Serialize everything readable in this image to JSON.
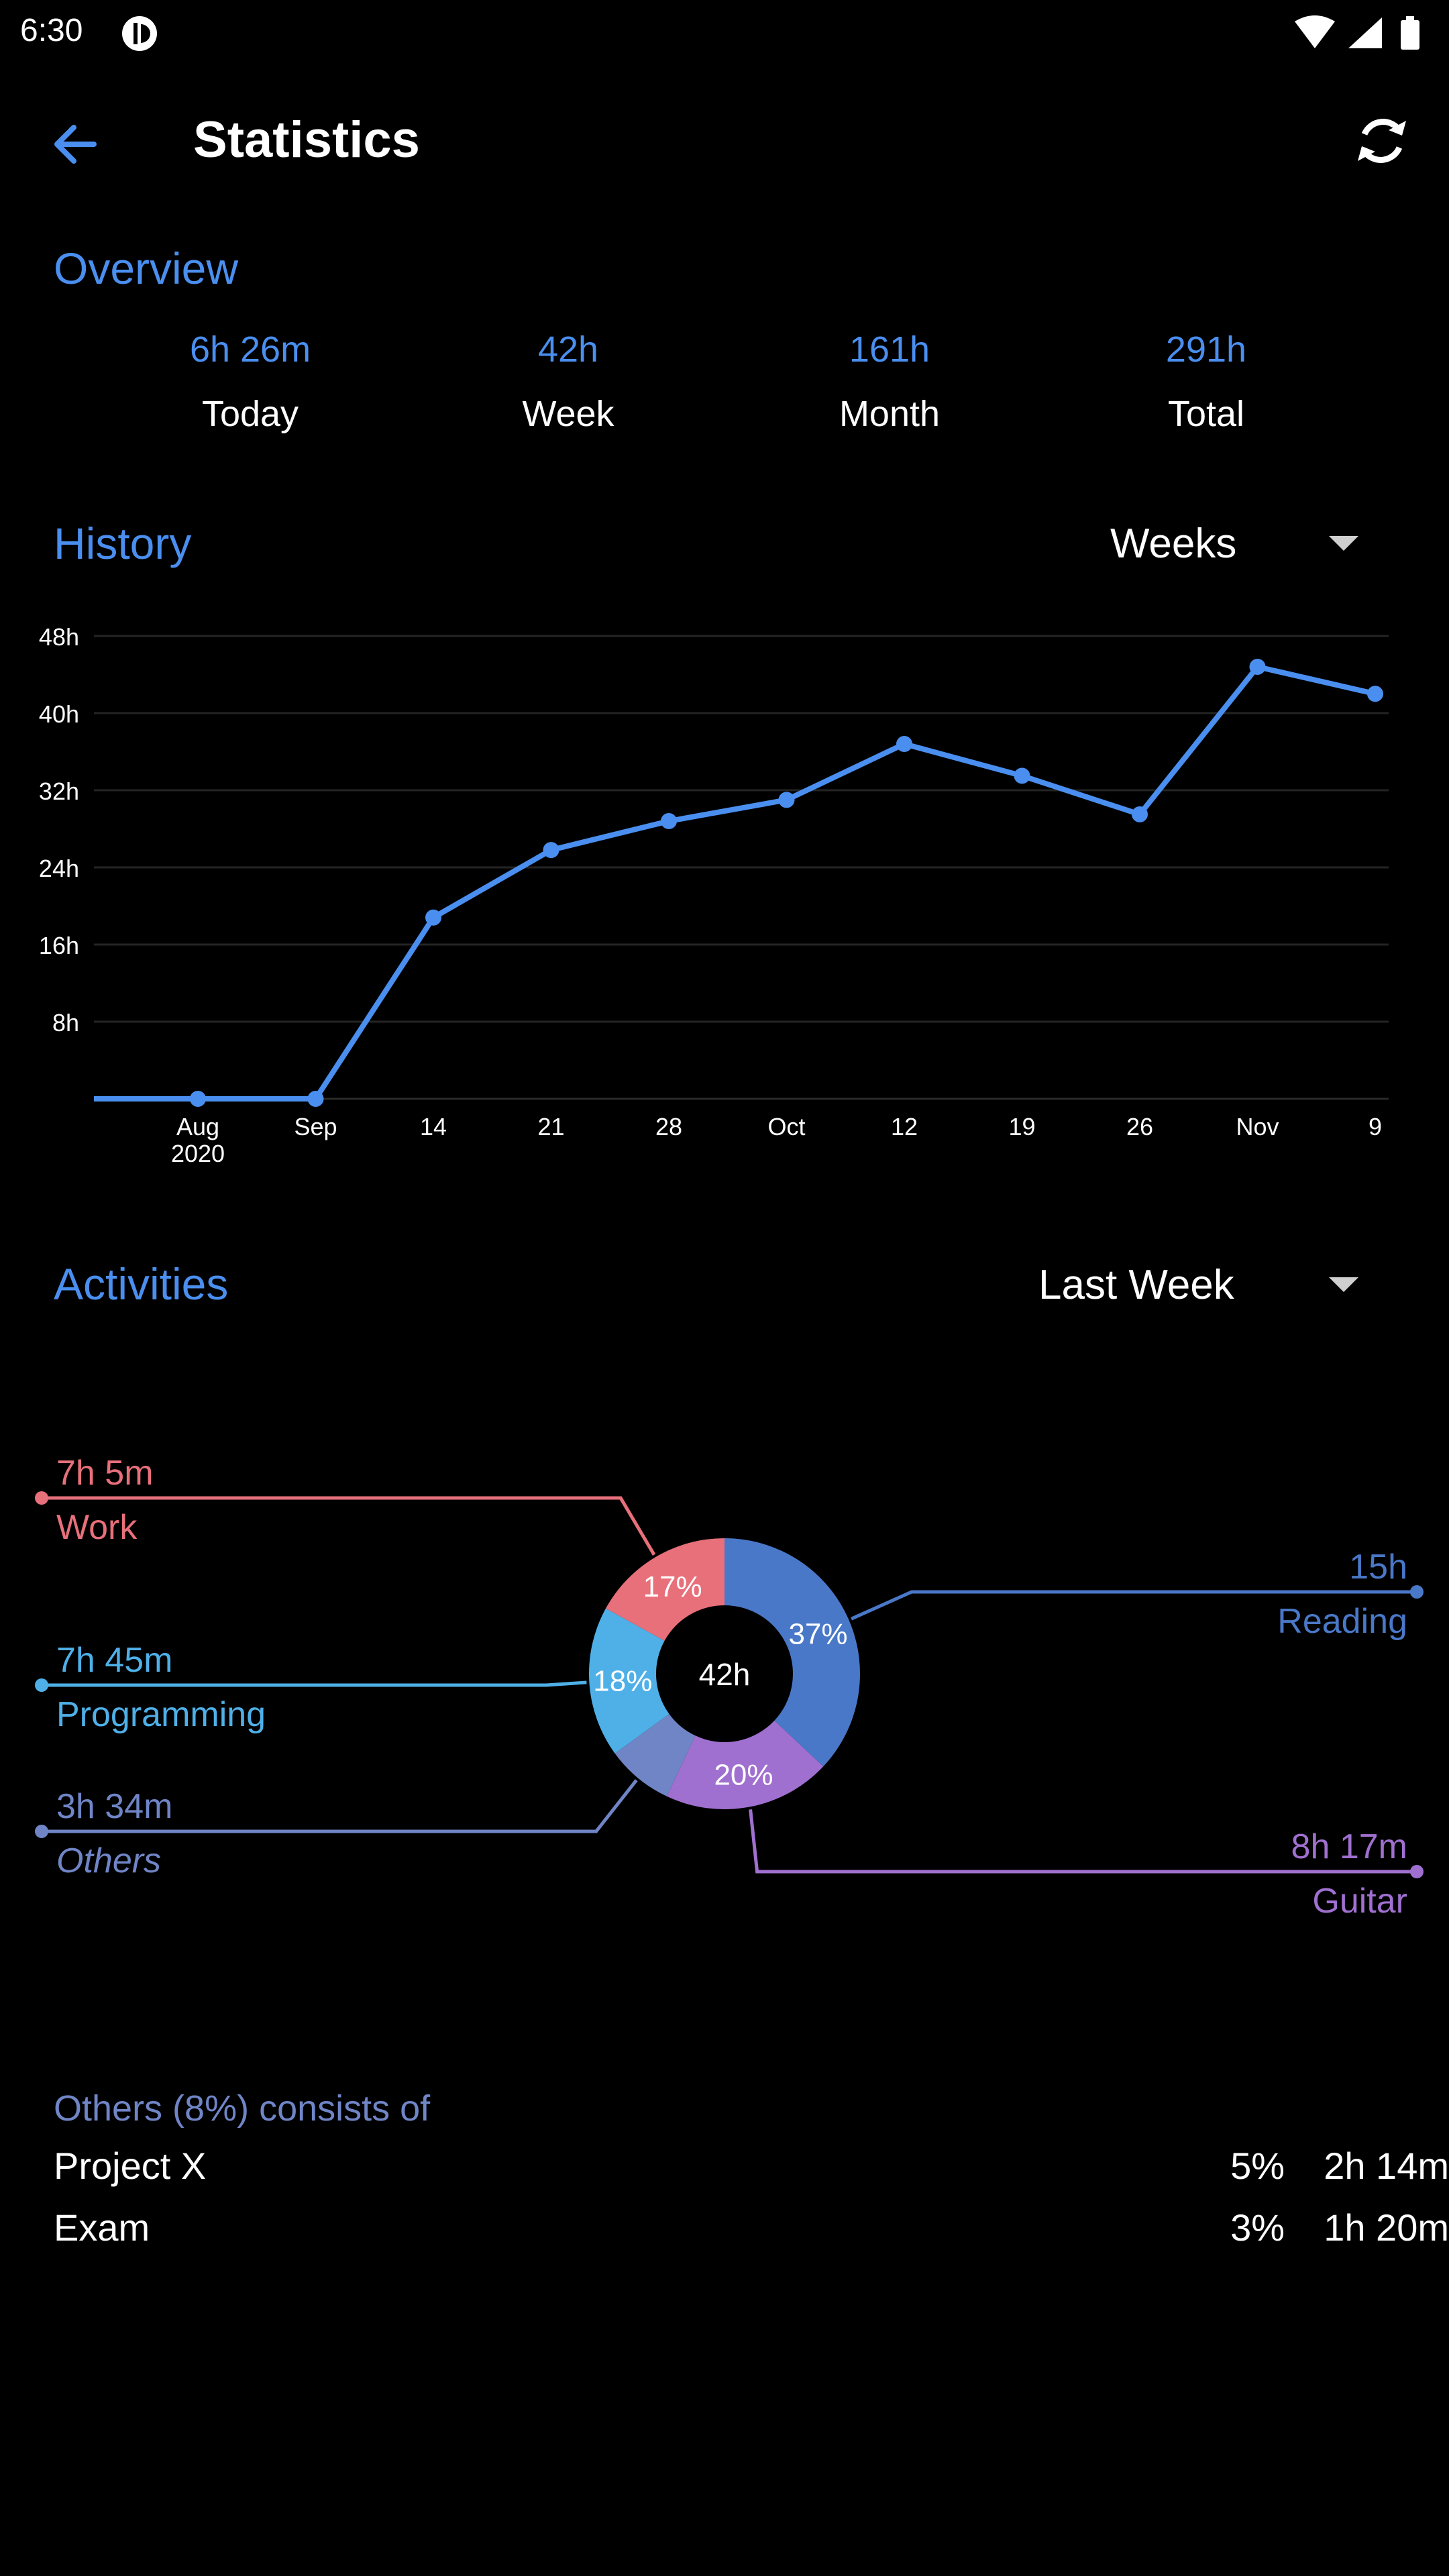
{
  "status_bar": {
    "time": "6:30"
  },
  "app_bar": {
    "title": "Statistics"
  },
  "overview": {
    "heading": "Overview",
    "stats": [
      {
        "value": "6h 26m",
        "label": "Today"
      },
      {
        "value": "42h",
        "label": "Week"
      },
      {
        "value": "161h",
        "label": "Month"
      },
      {
        "value": "291h",
        "label": "Total"
      }
    ]
  },
  "history": {
    "heading": "History",
    "range_selected": "Weeks"
  },
  "activities": {
    "heading": "Activities",
    "range_selected": "Last Week",
    "center_label": "42h"
  },
  "chart_data": [
    {
      "type": "line",
      "categories": [
        "Aug 2020",
        "Sep",
        "14",
        "21",
        "28",
        "Oct",
        "12",
        "19",
        "26",
        "Nov",
        "9"
      ],
      "x_tick_labels": [
        "Aug",
        "Sep",
        "14",
        "21",
        "28",
        "Oct",
        "12",
        "19",
        "26",
        "Nov",
        "9"
      ],
      "x_year_label": "2020",
      "series": [
        {
          "values": [
            0,
            0,
            18.8,
            25.8,
            28.8,
            31,
            36.8,
            33.5,
            29.5,
            44.8,
            42
          ]
        }
      ],
      "ylim": [
        0,
        48
      ],
      "y_ticks": [
        8,
        16,
        24,
        32,
        40,
        48
      ],
      "y_tick_labels": [
        "8h",
        "16h",
        "24h",
        "32h",
        "40h",
        "48h"
      ],
      "grid": true,
      "color": "#4a8ff0"
    },
    {
      "type": "pie",
      "style": "donut",
      "total_label": "42h",
      "slices": [
        {
          "name": "Reading",
          "duration": "15h",
          "percent": 37,
          "percent_label": "37%",
          "color": "#4a78c8",
          "side": "right"
        },
        {
          "name": "Guitar",
          "duration": "8h 17m",
          "percent": 20,
          "percent_label": "20%",
          "color": "#a070d0",
          "side": "right"
        },
        {
          "name": "Others",
          "duration": "3h 34m",
          "percent": 8,
          "percent_label": "",
          "color": "#6f85c6",
          "side": "left"
        },
        {
          "name": "Programming",
          "duration": "7h 45m",
          "percent": 18,
          "percent_label": "18%",
          "color": "#4fb0e8",
          "side": "left"
        },
        {
          "name": "Work",
          "duration": "7h 5m",
          "percent": 17,
          "percent_label": "17%",
          "color": "#e8707a",
          "side": "left"
        }
      ]
    }
  ],
  "others_breakdown": {
    "title": "Others (8%) consists of",
    "items": [
      {
        "name": "Project X",
        "percent": "5%",
        "duration": "2h 14m"
      },
      {
        "name": "Exam",
        "percent": "3%",
        "duration": "1h 20m"
      }
    ]
  },
  "colors": {
    "accent": "#4a8ff0",
    "background": "#000000"
  }
}
